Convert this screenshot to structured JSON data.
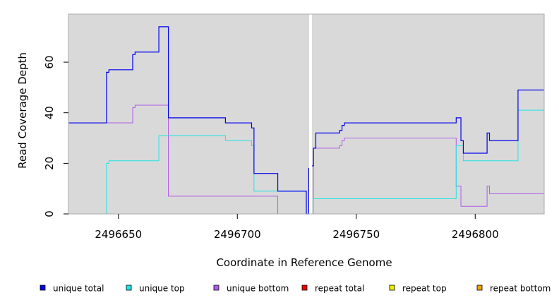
{
  "chart_data": {
    "type": "line",
    "step": true,
    "xlabel": "Coordinate in Reference Genome",
    "ylabel": "Read Coverage Depth",
    "xlim": [
      2496629,
      2496829
    ],
    "ylim": [
      0,
      79
    ],
    "x_ticks": [
      2496650,
      2496700,
      2496750,
      2496800
    ],
    "x_tick_labels": [
      "2496650",
      "2496700",
      "2496750",
      "2496800"
    ],
    "y_ticks": [
      0,
      20,
      40,
      60
    ],
    "y_tick_labels": [
      "0",
      "20",
      "40",
      "60"
    ],
    "background": "#d9d9d9",
    "gap_x": 2496729,
    "legend_position": "bottom",
    "series": [
      {
        "name": "unique total",
        "color": "#0000ee",
        "points": [
          [
            2496629,
            36
          ],
          [
            2496645,
            56
          ],
          [
            2496646,
            57
          ],
          [
            2496656,
            63
          ],
          [
            2496657,
            64
          ],
          [
            2496667,
            74
          ],
          [
            2496671,
            38
          ],
          [
            2496694,
            38
          ],
          [
            2496695,
            36
          ],
          [
            2496706,
            34
          ],
          [
            2496707,
            16
          ],
          [
            2496717,
            9
          ],
          [
            2496729,
            0
          ],
          [
            2496730,
            18
          ],
          [
            2496731,
            19
          ],
          [
            2496732,
            26
          ],
          [
            2496733,
            32
          ],
          [
            2496743,
            33
          ],
          [
            2496744,
            35
          ],
          [
            2496745,
            36
          ],
          [
            2496792,
            38
          ],
          [
            2496794,
            29
          ],
          [
            2496795,
            24
          ],
          [
            2496805,
            32
          ],
          [
            2496806,
            29
          ],
          [
            2496818,
            49
          ],
          [
            2496829,
            49
          ]
        ]
      },
      {
        "name": "unique top",
        "color": "#22e4e4",
        "points": [
          [
            2496629,
            0
          ],
          [
            2496645,
            20
          ],
          [
            2496646,
            21
          ],
          [
            2496667,
            31
          ],
          [
            2496694,
            31
          ],
          [
            2496695,
            29
          ],
          [
            2496706,
            27
          ],
          [
            2496707,
            9
          ],
          [
            2496717,
            9
          ],
          [
            2496729,
            0
          ],
          [
            2496732,
            6
          ],
          [
            2496792,
            27
          ],
          [
            2496795,
            21
          ],
          [
            2496818,
            41
          ],
          [
            2496829,
            41
          ]
        ]
      },
      {
        "name": "unique bottom",
        "color": "#b05ce8",
        "points": [
          [
            2496629,
            36
          ],
          [
            2496656,
            42
          ],
          [
            2496657,
            43
          ],
          [
            2496671,
            7
          ],
          [
            2496717,
            0
          ],
          [
            2496729,
            0
          ],
          [
            2496732,
            26
          ],
          [
            2496743,
            27
          ],
          [
            2496744,
            29
          ],
          [
            2496745,
            30
          ],
          [
            2496792,
            11
          ],
          [
            2496794,
            3
          ],
          [
            2496805,
            11
          ],
          [
            2496806,
            8
          ],
          [
            2496829,
            8
          ]
        ]
      },
      {
        "name": "repeat total",
        "color": "#ee0000",
        "points": [
          [
            2496629,
            0
          ],
          [
            2496829,
            0
          ]
        ]
      },
      {
        "name": "repeat top",
        "color": "#eeee00",
        "points": [
          [
            2496629,
            0
          ],
          [
            2496829,
            0
          ]
        ]
      },
      {
        "name": "repeat bottom",
        "color": "#f0a000",
        "points": [
          [
            2496629,
            0
          ],
          [
            2496829,
            0
          ]
        ]
      }
    ]
  }
}
